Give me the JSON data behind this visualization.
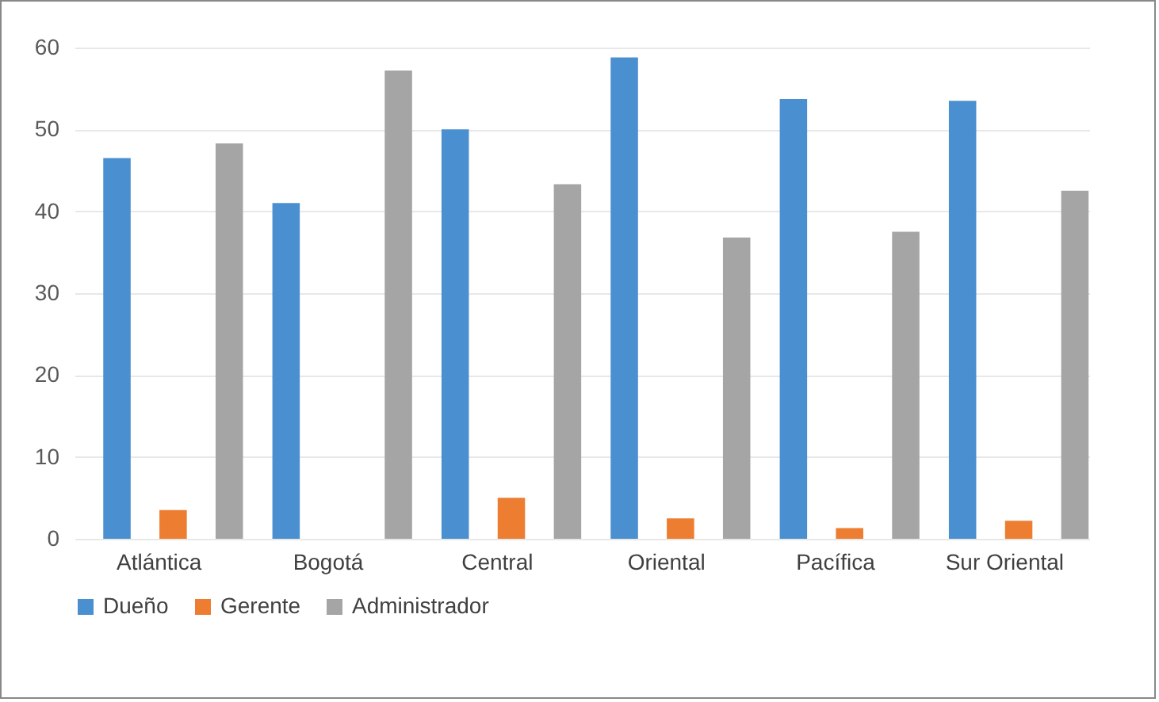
{
  "chart_data": {
    "type": "bar",
    "categories": [
      "Atlántica",
      "Bogotá",
      "Central",
      "Oriental",
      "Pacífica",
      "Sur Oriental"
    ],
    "series": [
      {
        "name": "Dueño",
        "color": "#4a8fcf",
        "values": [
          46.5,
          41,
          50,
          58.8,
          53.7,
          53.5
        ]
      },
      {
        "name": "Gerente",
        "color": "#ed7d31",
        "values": [
          3.5,
          0,
          5,
          2.5,
          1.3,
          2.2
        ]
      },
      {
        "name": "Administrador",
        "color": "#a5a5a5",
        "values": [
          48.3,
          57.2,
          43.3,
          36.8,
          37.5,
          42.5
        ]
      }
    ],
    "ylim": [
      0,
      60
    ],
    "yticks": [
      0,
      10,
      20,
      30,
      40,
      50,
      60
    ],
    "grid": "y",
    "legend": "bottom"
  }
}
